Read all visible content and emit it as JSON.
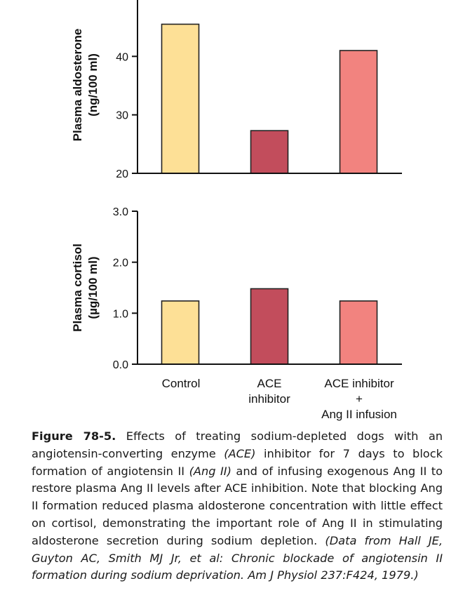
{
  "chart_data": [
    {
      "type": "bar",
      "categories": [
        "Control",
        "ACE inhibitor",
        "ACE inhibitor + Ang II infusion"
      ],
      "values": [
        45.5,
        27.3,
        41.0
      ],
      "ylabel_line1": "Plasma aldosterone",
      "ylabel_line2": "(ng/100 ml)",
      "ylim": [
        20,
        50
      ],
      "yticks": [
        20,
        30,
        40
      ],
      "ytick_labels": [
        "20",
        "30",
        "40"
      ],
      "colors": [
        "#fde096",
        "#c24d5c",
        "#f2837f"
      ],
      "grid": false
    },
    {
      "type": "bar",
      "categories": [
        "Control",
        "ACE inhibitor",
        "ACE inhibitor + Ang II infusion"
      ],
      "values": [
        1.24,
        1.48,
        1.24
      ],
      "ylabel_line1": "Plasma cortisol",
      "ylabel_line2": "(µg/100 ml)",
      "ylim": [
        0,
        3.0
      ],
      "yticks": [
        0,
        1.0,
        2.0,
        3.0
      ],
      "ytick_labels": [
        "0.0",
        "1.0",
        "2.0",
        "3.0"
      ],
      "colors": [
        "#fde096",
        "#c24d5c",
        "#f2837f"
      ],
      "grid": false
    }
  ],
  "category_labels": [
    [
      "Control"
    ],
    [
      "ACE",
      "inhibitor"
    ],
    [
      "ACE inhibitor",
      "+",
      "Ang II infusion"
    ]
  ],
  "caption": {
    "figure_label": "Figure 78-5.",
    "text_1": " Effects of treating sodium-depleted dogs with an angiotensin-converting enzyme ",
    "italic_1": "(ACE)",
    "text_2": " inhibitor for 7 days to block formation of angiotensin II ",
    "italic_2": "(Ang II)",
    "text_3": " and of infusing exogenous Ang II to restore plasma Ang II levels after ACE inhibition. Note that blocking Ang II formation reduced plasma aldosterone concentration with little effect on cortisol, demonstrating the important role of Ang II in stimulating aldosterone secretion during sodium depletion. ",
    "source": "(Data from Hall JE, Guyton AC, Smith MJ Jr, et al: Chronic blockade of angiotensin II formation during sodium deprivation. Am J Physiol 237:F424, 1979.)"
  }
}
